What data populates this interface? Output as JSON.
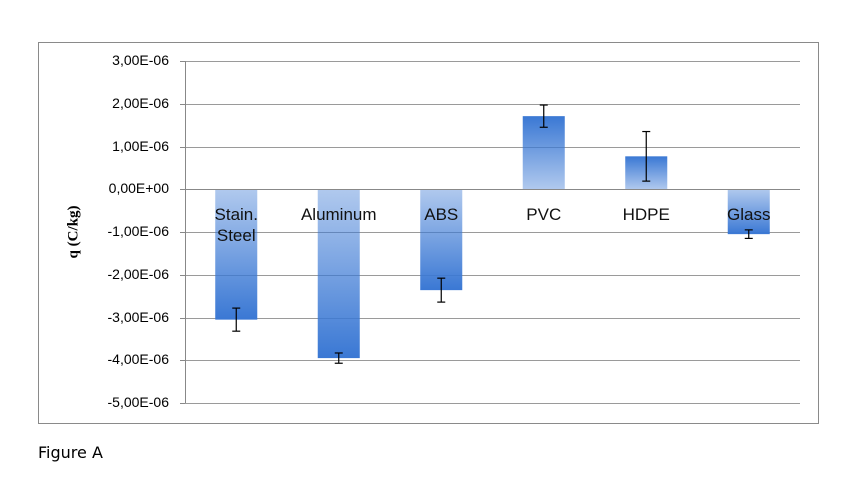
{
  "chart_data": {
    "type": "bar",
    "y_label": "q (C/kg)",
    "caption": "Figure A",
    "categories": [
      "Stain. Steel",
      "Aluminum",
      "ABS",
      "PVC",
      "HDPE",
      "Glass"
    ],
    "values": [
      -3.05e-06,
      -3.95e-06,
      -2.36e-06,
      1.71e-06,
      7.7e-07,
      -1.05e-06
    ],
    "errors": [
      2.7e-07,
      1.2e-07,
      2.8e-07,
      2.6e-07,
      5.8e-07,
      1e-07
    ],
    "color": "#3a78d4",
    "ylim": [
      -5e-06,
      3e-06
    ],
    "yticks": [
      {
        "value": 3e-06,
        "label": "3,00E-06"
      },
      {
        "value": 2e-06,
        "label": "2,00E-06"
      },
      {
        "value": 1e-06,
        "label": "1,00E-06"
      },
      {
        "value": 0,
        "label": "0,00E+00"
      },
      {
        "value": -1e-06,
        "label": "-1,00E-06"
      },
      {
        "value": -2e-06,
        "label": "-2,00E-06"
      },
      {
        "value": -3e-06,
        "label": "-3,00E-06"
      },
      {
        "value": -4e-06,
        "label": "-4,00E-06"
      },
      {
        "value": -5e-06,
        "label": "-5,00E-06"
      }
    ],
    "grid": true
  }
}
